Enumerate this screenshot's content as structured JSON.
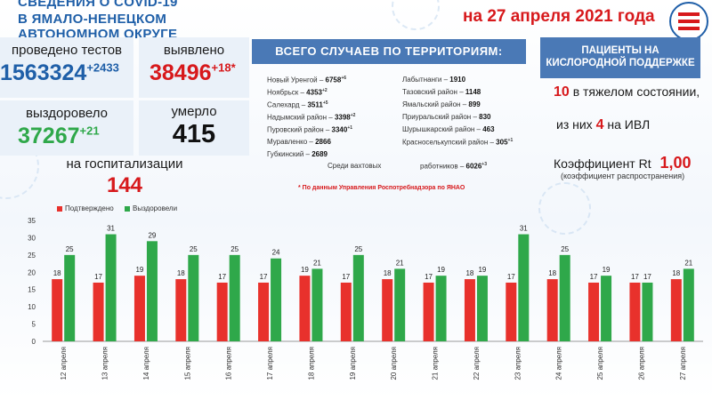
{
  "header": {
    "line1": "СВЕДЕНИЯ О COVID-19",
    "line2": "В ЯМАЛО-НЕНЕЦКОМ АВТОНОМНОМ ОКРУГЕ"
  },
  "date": "на 27 апреля 2021 года",
  "stats": {
    "tests_label": "проведено тестов",
    "tests_value": "1563324",
    "tests_delta": "+2433",
    "detected_label": "выявлено",
    "detected_value": "38496",
    "detected_delta": "+18*",
    "recovered_label": "выздоровело",
    "recovered_value": "37267",
    "recovered_delta": "+21",
    "died_label": "умерло",
    "died_value": "415",
    "hospital_label": "на госпитализации",
    "hospital_value": "144"
  },
  "territories": {
    "title": "ВСЕГО СЛУЧАЕВ ПО ТЕРРИТОРИЯМ:",
    "left": [
      {
        "name": "Новый Уренгой",
        "count": "6758",
        "delta": "+6"
      },
      {
        "name": "Ноябрьск",
        "count": "4353",
        "delta": "+2"
      },
      {
        "name": "Салехард",
        "count": "3511",
        "delta": "+5"
      },
      {
        "name": "Надымский район",
        "count": "3398",
        "delta": "+2"
      },
      {
        "name": "Пуровский район",
        "count": "3340",
        "delta": "+1"
      },
      {
        "name": "Муравленко",
        "count": "2866",
        "delta": ""
      },
      {
        "name": "Губкинский",
        "count": "2689",
        "delta": ""
      }
    ],
    "right": [
      {
        "name": "Лабытнанги",
        "count": "1910",
        "delta": ""
      },
      {
        "name": "Тазовский район",
        "count": "1148",
        "delta": ""
      },
      {
        "name": "Ямальский район",
        "count": "899",
        "delta": ""
      },
      {
        "name": "Приуральский район",
        "count": "830",
        "delta": ""
      },
      {
        "name": "Шурышкарский район",
        "count": "463",
        "delta": ""
      },
      {
        "name": "Красноселькупский район",
        "count": "305",
        "delta": "+1"
      }
    ],
    "shift_label": "Среди вахтовых",
    "shift_label2": "работников",
    "shift_count": "6026",
    "shift_delta": "+3",
    "note": "* По данным Управления Роспотребнадзора по ЯНАО"
  },
  "oxygen": {
    "title_line1": "ПАЦИЕНТЫ НА",
    "title_line2": "КИСЛОРОДНОЙ ПОДДЕРЖКЕ",
    "severe_count": "10",
    "severe_label": "в тяжелом состоянии,",
    "ivl_prefix": "из них",
    "ivl_count": "4",
    "ivl_label": "на  ИВЛ",
    "rt_label": "Коэффициент Rt",
    "rt_value": "1,00",
    "rt_sub": "(коэффициент распространения)"
  },
  "colors": {
    "confirmed": "#e8312c",
    "recovered": "#2fa84a",
    "accent": "#1f5fa8",
    "banner": "#4a79b6"
  },
  "chart_data": {
    "type": "bar",
    "categories": [
      "12 апреля",
      "13 апреля",
      "14 апреля",
      "15 апреля",
      "16 апреля",
      "17 апреля",
      "18 апреля",
      "19 апреля",
      "20 апреля",
      "21 апреля",
      "22 апреля",
      "23 апреля",
      "24 апреля",
      "25 апреля",
      "26 апреля",
      "27 апреля"
    ],
    "series": [
      {
        "name": "Подтверждено",
        "color": "#e8312c",
        "values": [
          18,
          17,
          19,
          18,
          17,
          17,
          19,
          17,
          18,
          17,
          18,
          17,
          18,
          17,
          17,
          18
        ]
      },
      {
        "name": "Выздоровели",
        "color": "#2fa84a",
        "values": [
          25,
          31,
          29,
          25,
          25,
          24,
          21,
          25,
          21,
          19,
          19,
          31,
          25,
          19,
          17,
          21
        ]
      }
    ],
    "ylim": [
      0,
      35
    ],
    "yticks": [
      0,
      5,
      10,
      15,
      20,
      25,
      30,
      35
    ],
    "grid": false,
    "legend": "top-left"
  }
}
